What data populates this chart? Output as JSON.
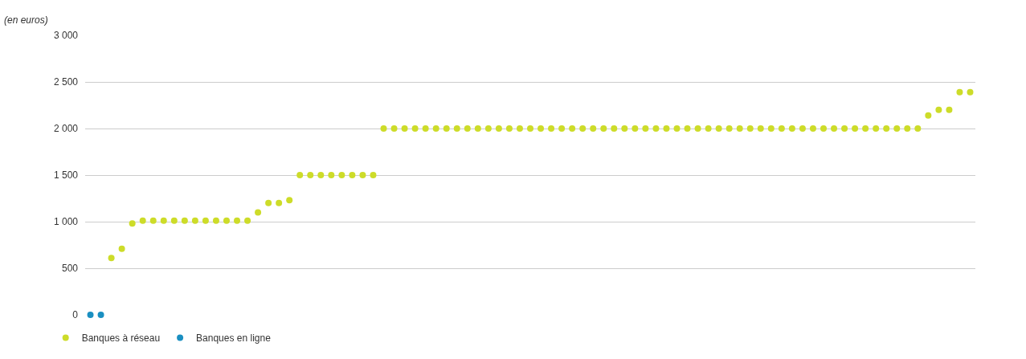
{
  "chart_data": {
    "type": "scatter",
    "ylabel": "(en euros)",
    "categories": [
      null,
      null,
      null,
      null,
      null,
      null,
      null,
      null,
      null,
      null,
      null,
      null,
      null,
      null,
      null,
      null,
      null,
      null,
      null,
      null,
      null,
      null,
      null,
      null,
      null,
      null,
      null,
      null,
      null,
      null,
      null,
      null,
      null,
      null,
      null,
      null,
      null,
      null,
      null,
      null,
      null,
      null,
      null,
      null,
      null,
      null,
      null,
      null,
      null,
      null,
      null,
      null,
      null,
      null,
      null,
      null,
      null,
      null,
      null,
      null,
      null,
      null,
      null,
      null,
      null,
      null,
      null,
      null,
      null,
      null,
      null,
      null,
      null,
      null,
      null,
      null,
      null,
      null,
      null,
      null,
      null,
      null,
      null,
      null,
      null
    ],
    "series": [
      {
        "name": "Banques à réseau",
        "color": "#cddc29",
        "values": [
          null,
          null,
          610,
          710,
          980,
          1010,
          1010,
          1010,
          1010,
          1010,
          1010,
          1010,
          1010,
          1010,
          1010,
          1010,
          1100,
          1200,
          1200,
          1230,
          1500,
          1500,
          1500,
          1500,
          1500,
          1500,
          1500,
          1500,
          2000,
          2000,
          2000,
          2000,
          2000,
          2000,
          2000,
          2000,
          2000,
          2000,
          2000,
          2000,
          2000,
          2000,
          2000,
          2000,
          2000,
          2000,
          2000,
          2000,
          2000,
          2000,
          2000,
          2000,
          2000,
          2000,
          2000,
          2000,
          2000,
          2000,
          2000,
          2000,
          2000,
          2000,
          2000,
          2000,
          2000,
          2000,
          2000,
          2000,
          2000,
          2000,
          2000,
          2000,
          2000,
          2000,
          2000,
          2000,
          2000,
          2000,
          2000,
          2000,
          2140,
          2200,
          2200,
          2390,
          2390
        ]
      },
      {
        "name": "Banques en ligne",
        "color": "#1a8fc1",
        "values": [
          0,
          0,
          null,
          null,
          null,
          null,
          null,
          null,
          null,
          null,
          null,
          null,
          null,
          null,
          null,
          null,
          null,
          null,
          null,
          null,
          null,
          null,
          null,
          null,
          null,
          null,
          null,
          null,
          null,
          null,
          null,
          null,
          null,
          null,
          null,
          null,
          null,
          null,
          null,
          null,
          null,
          null,
          null,
          null,
          null,
          null,
          null,
          null,
          null,
          null,
          null,
          null,
          null,
          null,
          null,
          null,
          null,
          null,
          null,
          null,
          null,
          null,
          null,
          null,
          null,
          null,
          null,
          null,
          null,
          null,
          null,
          null,
          null,
          null,
          null,
          null,
          null,
          null,
          null,
          null,
          null,
          null,
          null,
          null,
          null
        ]
      }
    ],
    "ylim": [
      0,
      3000
    ],
    "yticks": [
      {
        "value": 0,
        "label": "0"
      },
      {
        "value": 500,
        "label": "500"
      },
      {
        "value": 1000,
        "label": "1 000"
      },
      {
        "value": 1500,
        "label": "1 500"
      },
      {
        "value": 2000,
        "label": "2 000"
      },
      {
        "value": 2500,
        "label": "2 500"
      },
      {
        "value": 3000,
        "label": "3 000"
      }
    ],
    "grid": "y",
    "legend": "bottom left",
    "marker": "circle",
    "tick_labels": "y"
  }
}
